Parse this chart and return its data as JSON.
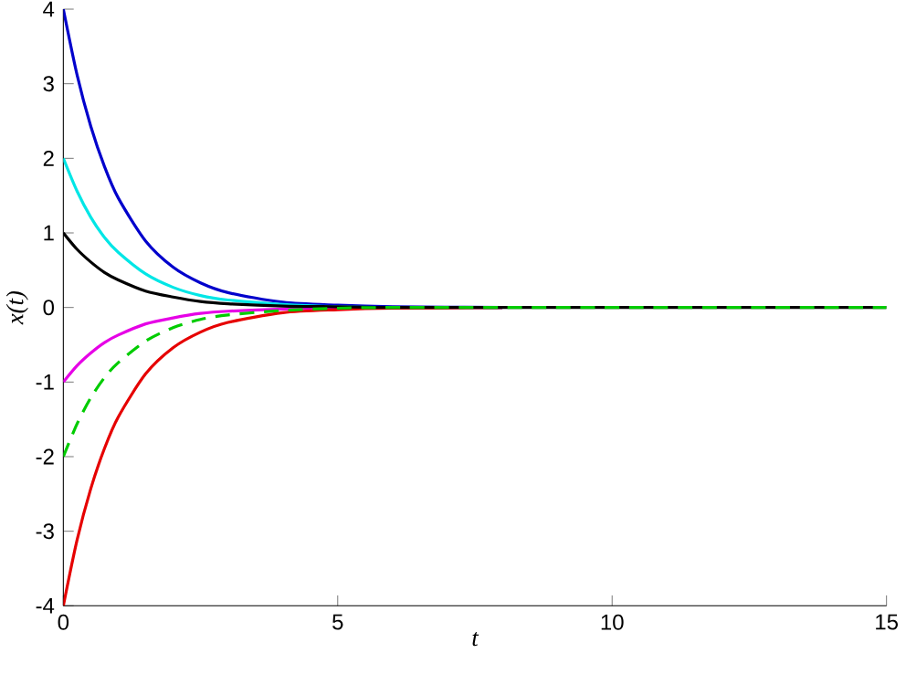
{
  "chart_data": {
    "type": "line",
    "xlabel": "t",
    "ylabel": "x(t)",
    "xlim": [
      0,
      15
    ],
    "ylim": [
      -4,
      4
    ],
    "xticks": [
      0,
      5,
      10,
      15
    ],
    "yticks": [
      -4,
      -3,
      -2,
      -1,
      0,
      1,
      2,
      3,
      4
    ],
    "grid": false,
    "marker": "none",
    "x": [
      0,
      0.25,
      0.5,
      0.75,
      1,
      1.5,
      2,
      2.5,
      3,
      4,
      5,
      6,
      8,
      10,
      15
    ],
    "series": [
      {
        "color": "#0000cc",
        "line_style": "solid",
        "values": [
          4,
          3.12,
          2.43,
          1.89,
          1.47,
          0.89,
          0.54,
          0.33,
          0.2,
          0.07,
          0.03,
          0.01,
          0,
          null,
          null
        ]
      },
      {
        "color": "#00e6e6",
        "line_style": "solid",
        "values": [
          2,
          1.56,
          1.21,
          0.94,
          0.74,
          0.45,
          0.27,
          0.16,
          0.1,
          0.04,
          0.01,
          0,
          null,
          null,
          null
        ]
      },
      {
        "color": "#e600e6",
        "line_style": "solid",
        "values": [
          -1,
          -0.78,
          -0.61,
          -0.47,
          -0.37,
          -0.22,
          -0.14,
          -0.08,
          -0.05,
          -0.02,
          -0.01,
          0,
          0,
          null,
          null
        ]
      },
      {
        "color": "#e60000",
        "line_style": "solid",
        "values": [
          -4,
          -3.12,
          -2.43,
          -1.89,
          -1.47,
          -0.89,
          -0.54,
          -0.33,
          -0.2,
          -0.07,
          -0.03,
          -0.01,
          0,
          null,
          null
        ]
      },
      {
        "color": "#000000",
        "line_style": "solid",
        "values": [
          1,
          0.78,
          0.61,
          0.47,
          0.37,
          0.22,
          0.14,
          0.08,
          0.05,
          0.02,
          0.01,
          0,
          0,
          0,
          0
        ]
      },
      {
        "color": "#00cc00",
        "line_style": "dashed",
        "values": [
          -2,
          -1.56,
          -1.21,
          -0.94,
          -0.74,
          -0.45,
          -0.27,
          -0.16,
          -0.1,
          -0.04,
          -0.01,
          0,
          0,
          0,
          0
        ]
      }
    ]
  }
}
